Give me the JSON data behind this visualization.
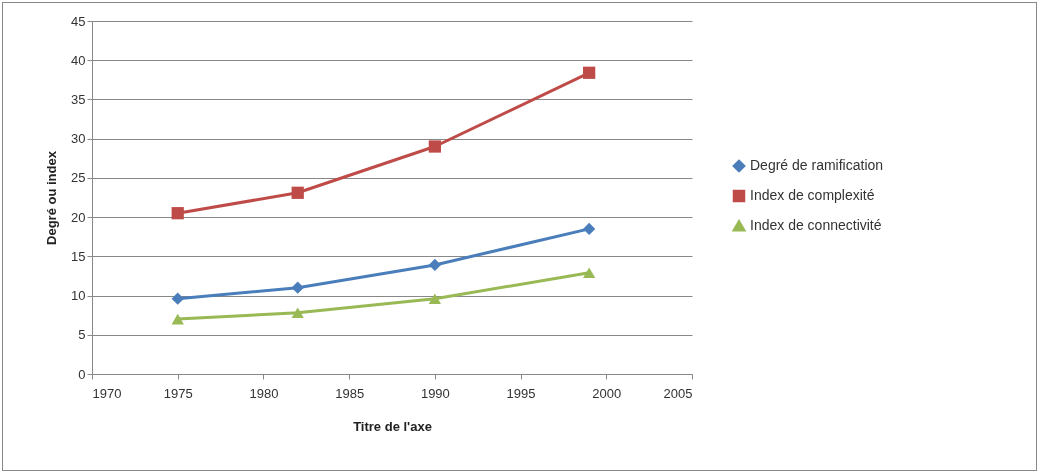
{
  "chart_data": {
    "type": "line",
    "xlabel": "Titre de l'axe",
    "ylabel": "Degré ou index",
    "x": [
      1975,
      1982,
      1990,
      1999
    ],
    "series": [
      {
        "name": "Degré de ramification",
        "color": "#4a7ebb",
        "marker": "diamond",
        "values": [
          9.6,
          11.0,
          13.9,
          18.5
        ]
      },
      {
        "name": "Index de complexité",
        "color": "#be4b48",
        "marker": "square",
        "values": [
          20.5,
          23.1,
          29.0,
          38.4
        ]
      },
      {
        "name": "Index de connectivité",
        "color": "#98b954",
        "marker": "triangle",
        "values": [
          7.0,
          7.8,
          9.6,
          12.9
        ]
      }
    ],
    "xlim": [
      1970,
      2005
    ],
    "xticks": [
      1970,
      1975,
      1980,
      1985,
      1990,
      1995,
      2000,
      2005
    ],
    "ylim": [
      0,
      45
    ],
    "yticks": [
      0,
      5,
      10,
      15,
      20,
      25,
      30,
      35,
      40,
      45
    ],
    "grid": "y",
    "legend": "right",
    "line_style": "solid"
  }
}
